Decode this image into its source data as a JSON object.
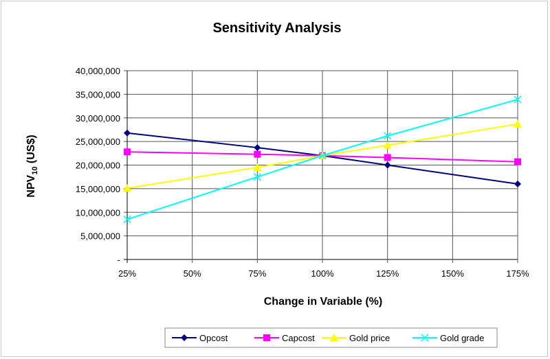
{
  "chart_data": {
    "type": "line",
    "title": "Sensitivity Analysis",
    "xlabel": "Change in Variable (%)",
    "ylabel_main": "NPV",
    "ylabel_sub": "10",
    "ylabel_tail": " (US$)",
    "x": [
      25,
      50,
      75,
      100,
      125,
      150,
      175
    ],
    "x_tick_labels": [
      "25%",
      "50%",
      "75%",
      "100%",
      "125%",
      "150%",
      "175%"
    ],
    "y_tick_labels": [
      "-",
      "5,000,000",
      "10,000,000",
      "15,000,000",
      "20,000,000",
      "25,000,000",
      "30,000,000",
      "35,000,000",
      "40,000,000"
    ],
    "ylim": [
      0,
      40000000
    ],
    "xlim": [
      25,
      175
    ],
    "grid": true,
    "legend_position": "bottom",
    "series": [
      {
        "name": "Opcost",
        "color": "#000080",
        "marker": "diamond",
        "x": [
          25,
          75,
          100,
          125,
          175
        ],
        "values": [
          26800000,
          23700000,
          22000000,
          20000000,
          16000000
        ]
      },
      {
        "name": "Capcost",
        "color": "#FF00FF",
        "marker": "square",
        "x": [
          25,
          75,
          100,
          125,
          175
        ],
        "values": [
          22800000,
          22300000,
          22000000,
          21600000,
          20700000
        ]
      },
      {
        "name": "Gold price",
        "color": "#FFFF00",
        "marker": "triangle",
        "x": [
          25,
          75,
          100,
          125,
          175
        ],
        "values": [
          15100000,
          19500000,
          22000000,
          24200000,
          28700000
        ]
      },
      {
        "name": "Gold grade",
        "color": "#00FFFF",
        "marker": "x",
        "x": [
          25,
          75,
          100,
          125,
          175
        ],
        "values": [
          8500000,
          17500000,
          22000000,
          26200000,
          33900000
        ]
      }
    ]
  }
}
